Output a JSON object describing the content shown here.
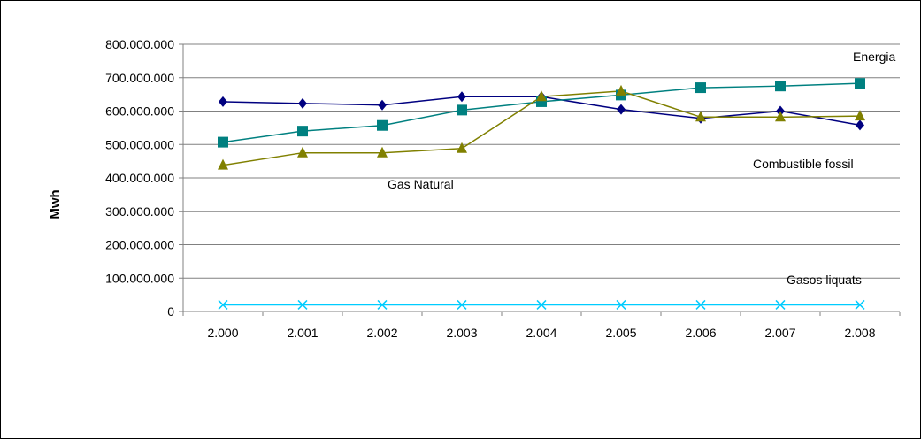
{
  "chart_data": {
    "type": "line",
    "title": "",
    "ylabel": "Mwh",
    "xlabel": "",
    "categories": [
      "2.000",
      "2.001",
      "2.002",
      "2.003",
      "2.004",
      "2.005",
      "2.006",
      "2.007",
      "2.008"
    ],
    "ylim": [
      0,
      800000000
    ],
    "yticks": [
      {
        "value": 0,
        "label": "0"
      },
      {
        "value": 100000000,
        "label": "100.000.000"
      },
      {
        "value": 200000000,
        "label": "200.000.000"
      },
      {
        "value": 300000000,
        "label": "300.000.000"
      },
      {
        "value": 400000000,
        "label": "400.000.000"
      },
      {
        "value": 500000000,
        "label": "500.000.000"
      },
      {
        "value": 600000000,
        "label": "600.000.000"
      },
      {
        "value": 700000000,
        "label": "700.000.000"
      },
      {
        "value": 800000000,
        "label": "800.000.000"
      }
    ],
    "grid": true,
    "series": [
      {
        "key": "combustible",
        "color": "#000080",
        "marker": "diamond",
        "values": [
          628000000,
          623000000,
          618000000,
          643000000,
          643000000,
          605000000,
          578000000,
          600000000,
          558000000
        ]
      },
      {
        "key": "energia",
        "color": "#008080",
        "marker": "square",
        "values": [
          507000000,
          540000000,
          557000000,
          603000000,
          628000000,
          648000000,
          670000000,
          675000000,
          683000000
        ]
      },
      {
        "key": "gas",
        "color": "#808000",
        "marker": "triangle",
        "values": [
          438000000,
          475000000,
          475000000,
          488000000,
          643000000,
          660000000,
          582000000,
          582000000,
          585000000
        ]
      },
      {
        "key": "gasos",
        "color": "#00CCFF",
        "marker": "x",
        "values": [
          20000000,
          20000000,
          20000000,
          20000000,
          20000000,
          20000000,
          20000000,
          20000000,
          20000000
        ]
      }
    ],
    "annotations": {
      "energia": "Energia",
      "combustible": "Combustible fossil",
      "gas": "Gas Natural",
      "gasos": "Gasos liquats"
    }
  }
}
